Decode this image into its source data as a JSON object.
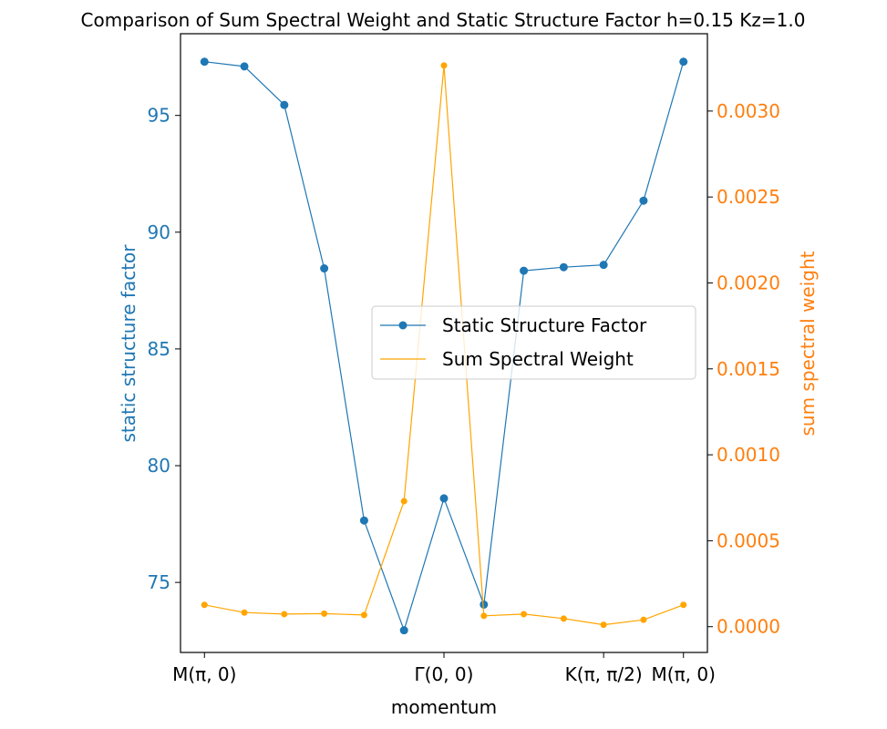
{
  "chart_data": {
    "type": "line",
    "title": "Comparison of Sum Spectral Weight and Static Structure Factor h=0.15 Kz=1.0",
    "xlabel": "momentum",
    "ylabel_left": "static structure factor",
    "ylabel_right": "sum spectral weight",
    "x_ticks": [
      {
        "x": 0,
        "label": "M(π, 0)"
      },
      {
        "x": 6,
        "label": "Γ(0, 0)"
      },
      {
        "x": 10,
        "label": "K(π, π/2)"
      },
      {
        "x": 12,
        "label": "M(π, 0)"
      }
    ],
    "xlim": [
      -0.6,
      12.6
    ],
    "ylim_left": [
      72.0,
      98.5
    ],
    "ylim_right": [
      -0.00015,
      0.00345
    ],
    "y_ticks_left": [
      75,
      80,
      85,
      90,
      95
    ],
    "y_ticks_right": [
      "0.0000",
      "0.0005",
      "0.0010",
      "0.0015",
      "0.0020",
      "0.0025",
      "0.0030"
    ],
    "x": [
      0,
      1,
      2,
      3,
      4,
      5,
      6,
      7,
      8,
      9,
      10,
      11,
      12
    ],
    "series": [
      {
        "name": "Static Structure Factor",
        "axis": "left",
        "color": "#1f77b4",
        "values": [
          97.3,
          97.1,
          95.45,
          88.45,
          77.65,
          72.95,
          78.6,
          74.05,
          88.35,
          88.5,
          88.6,
          91.35,
          97.3
        ]
      },
      {
        "name": "Sum Spectral Weight",
        "axis": "right",
        "color": "#ffa500",
        "values": [
          0.000127,
          8.2e-05,
          7.3e-05,
          7.6e-05,
          6.8e-05,
          0.00073,
          0.003265,
          6.3e-05,
          7.3e-05,
          4.7e-05,
          1.1e-05,
          4e-05,
          0.000127
        ]
      }
    ],
    "legend": {
      "placement": "center-right"
    },
    "grid": false
  },
  "colors": {
    "left_axis": "#1f77b4",
    "right_axis": "#ff7f0e"
  }
}
